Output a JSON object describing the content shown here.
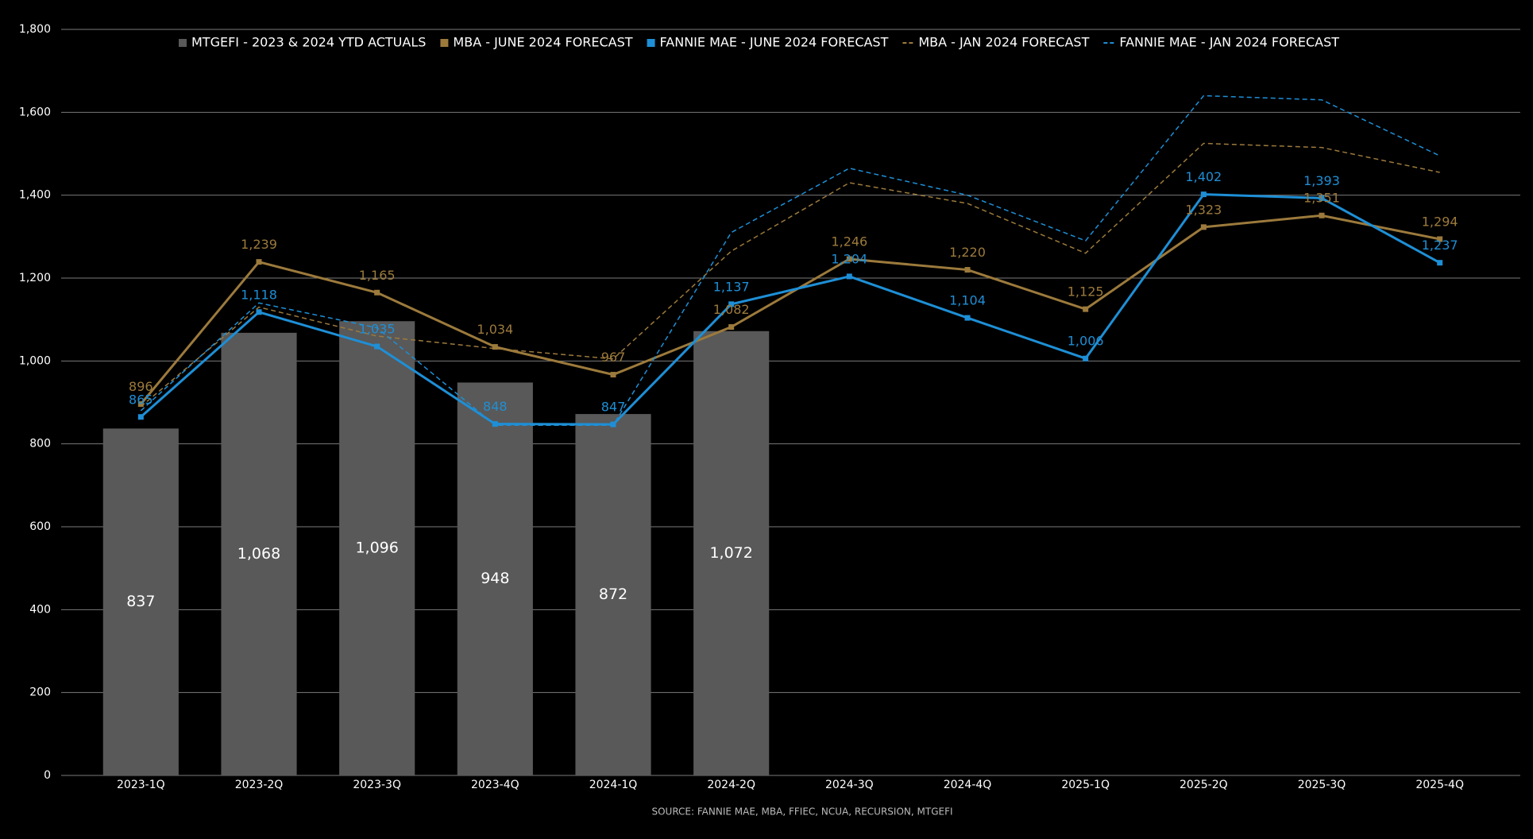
{
  "chart_data": {
    "type": "combo",
    "categories": [
      "2023-1Q",
      "2023-2Q",
      "2023-3Q",
      "2023-4Q",
      "2024-1Q",
      "2024-2Q",
      "2024-3Q",
      "2024-4Q",
      "2025-1Q",
      "2025-2Q",
      "2025-3Q",
      "2025-4Q"
    ],
    "series": [
      {
        "name": "MTGEFI - 2023 & 2024 YTD ACTUALS",
        "type": "bar",
        "color": "#595959",
        "values": [
          837,
          1068,
          1096,
          948,
          872,
          1072,
          null,
          null,
          null,
          null,
          null,
          null
        ],
        "value_labels": [
          "837",
          "1,068",
          "1,096",
          "948",
          "872",
          "1,072",
          null,
          null,
          null,
          null,
          null,
          null
        ]
      },
      {
        "name": "MBA - JUNE 2024 FORECAST",
        "type": "line",
        "line_style": "solid",
        "color": "#9c7a3c",
        "values": [
          896,
          1239,
          1165,
          1034,
          967,
          1082,
          1246,
          1220,
          1125,
          1323,
          1351,
          1294
        ],
        "value_labels": [
          "896",
          "1,239",
          "1,165",
          "1,034",
          "967",
          "1,082",
          "1,246",
          "1,220",
          "1,125",
          "1,323",
          "1,351",
          "1,294"
        ]
      },
      {
        "name": "FANNIE MAE - JUNE 2024 FORECAST",
        "type": "line",
        "line_style": "solid",
        "color": "#1e8fd6",
        "values": [
          865,
          1118,
          1035,
          848,
          847,
          1137,
          1204,
          1104,
          1006,
          1402,
          1393,
          1237
        ],
        "value_labels": [
          "865",
          "1,118",
          "1,035",
          "848",
          "847",
          "1,137",
          "1,204",
          "1,104",
          "1,006",
          "1,402",
          "1,393",
          "1,237"
        ]
      },
      {
        "name": "MBA - JAN 2024 FORECAST",
        "type": "line",
        "line_style": "dashed",
        "color": "#9c7a3c",
        "values": [
          890,
          1130,
          1060,
          1030,
          1005,
          1265,
          1430,
          1380,
          1260,
          1525,
          1515,
          1455
        ]
      },
      {
        "name": "FANNIE MAE - JAN 2024 FORECAST",
        "type": "line",
        "line_style": "dashed",
        "color": "#1e8fd6",
        "values": [
          880,
          1140,
          1080,
          845,
          845,
          1310,
          1465,
          1400,
          1290,
          1640,
          1630,
          1495
        ]
      }
    ],
    "ylim": [
      0,
      1800
    ],
    "yticks": [
      0,
      200,
      400,
      600,
      800,
      {
        "value": 1000,
        "label": "1,000"
      },
      {
        "value": 1200,
        "label": "1,200"
      },
      {
        "value": 1400,
        "label": "1,400"
      },
      {
        "value": 1600,
        "label": "1,600"
      },
      {
        "value": 1800,
        "label": "1,800"
      }
    ],
    "grid": true,
    "legend": "top",
    "source": "SOURCE: FANNIE MAE, MBA, FFIEC, NCUA, RECURSION, MTGEFI"
  }
}
